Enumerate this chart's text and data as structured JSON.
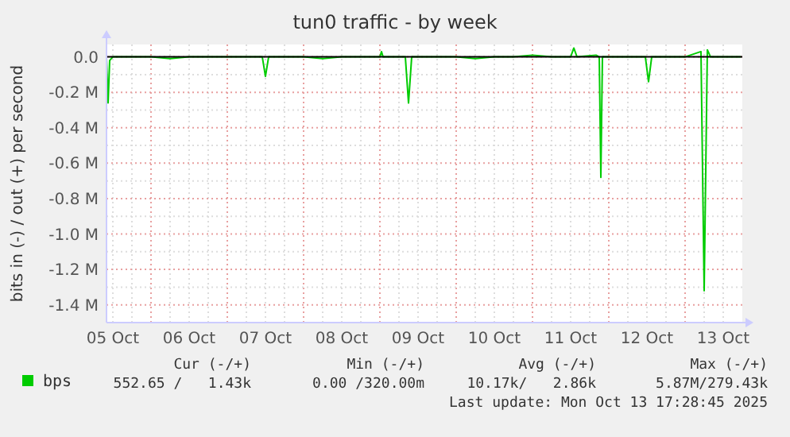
{
  "chart_data": {
    "type": "line",
    "title": "tun0 traffic - by week",
    "ylabel": "bits in (-) / out (+) per second",
    "x": [
      "2025-10-05T10:00",
      "2025-10-05T10:30",
      "2025-10-05T11:00",
      "2025-10-05T12:00",
      "2025-10-05T18:00",
      "2025-10-06T00:00",
      "2025-10-06T06:00",
      "2025-10-06T12:00",
      "2025-10-06T18:00",
      "2025-10-07T00:00",
      "2025-10-07T06:00",
      "2025-10-07T11:00",
      "2025-10-07T12:00",
      "2025-10-07T13:00",
      "2025-10-07T18:00",
      "2025-10-08T00:00",
      "2025-10-08T06:00",
      "2025-10-08T12:00",
      "2025-10-08T18:00",
      "2025-10-09T00:00",
      "2025-10-09T00:30",
      "2025-10-09T01:00",
      "2025-10-09T08:00",
      "2025-10-09T09:00",
      "2025-10-09T10:00",
      "2025-10-09T18:00",
      "2025-10-10T00:00",
      "2025-10-10T06:00",
      "2025-10-10T12:00",
      "2025-10-10T18:00",
      "2025-10-11T00:00",
      "2025-10-11T06:00",
      "2025-10-11T12:00",
      "2025-10-11T13:00",
      "2025-10-11T14:00",
      "2025-10-11T20:00",
      "2025-10-11T21:00",
      "2025-10-11T21:30",
      "2025-10-11T22:00",
      "2025-10-12T00:00",
      "2025-10-12T06:00",
      "2025-10-12T11:30",
      "2025-10-12T12:30",
      "2025-10-12T13:30",
      "2025-10-12T18:00",
      "2025-10-13T00:00",
      "2025-10-13T05:00",
      "2025-10-13T06:00",
      "2025-10-13T07:00",
      "2025-10-13T08:00",
      "2025-10-13T12:00",
      "2025-10-13T17:30"
    ],
    "series": [
      {
        "name": "bps",
        "color": "#00cc00",
        "values": [
          0,
          -0.26,
          -0.02,
          0,
          0,
          0,
          -0.01,
          0,
          0,
          0,
          0,
          0,
          -0.11,
          0,
          0,
          0,
          -0.01,
          0,
          0,
          0,
          0.03,
          0,
          0,
          -0.26,
          0,
          0,
          0,
          -0.01,
          0,
          0,
          0.01,
          0,
          0,
          0.05,
          0,
          0.01,
          0,
          -0.68,
          0,
          0,
          0,
          0,
          -0.14,
          0,
          0,
          0,
          0.03,
          -1.32,
          0.04,
          0,
          0,
          0
        ]
      }
    ],
    "xlim": [
      "2025-10-05T10:00",
      "2025-10-13T18:00"
    ],
    "xticks": [
      {
        "value": "2025-10-05T12:00",
        "label": "05 Oct"
      },
      {
        "value": "2025-10-06T12:00",
        "label": "06 Oct"
      },
      {
        "value": "2025-10-07T12:00",
        "label": "07 Oct"
      },
      {
        "value": "2025-10-08T12:00",
        "label": "08 Oct"
      },
      {
        "value": "2025-10-09T12:00",
        "label": "09 Oct"
      },
      {
        "value": "2025-10-10T12:00",
        "label": "10 Oct"
      },
      {
        "value": "2025-10-11T12:00",
        "label": "11 Oct"
      },
      {
        "value": "2025-10-12T12:00",
        "label": "12 Oct"
      },
      {
        "value": "2025-10-13T12:00",
        "label": "13 Oct"
      }
    ],
    "ylim": [
      -1.5,
      0.07
    ],
    "yticks": [
      {
        "value": 0,
        "label": "0.0"
      },
      {
        "value": -0.2,
        "label": "-0.2 M"
      },
      {
        "value": -0.4,
        "label": "-0.4 M"
      },
      {
        "value": -0.6,
        "label": "-0.6 M"
      },
      {
        "value": -0.8,
        "label": "-0.8 M"
      },
      {
        "value": -1.0,
        "label": "-1.0 M"
      },
      {
        "value": -1.2,
        "label": "-1.2 M"
      },
      {
        "value": -1.4,
        "label": "-1.4 M"
      }
    ],
    "ref_lines": [
      {
        "axis": "y",
        "value": 0,
        "color": "#000000"
      }
    ],
    "grid": true,
    "legend": "bottom left",
    "annotations": [
      "Cur (-/+)",
      "Min (-/+)",
      "Avg (-/+)",
      "Max (-/+)",
      "552.65 /   1.43k",
      "0.00 /320.00m",
      "10.17k/   2.86k",
      "5.87M/279.43k",
      "Last update: Mon Oct 13 17:28:45 2025"
    ]
  }
}
